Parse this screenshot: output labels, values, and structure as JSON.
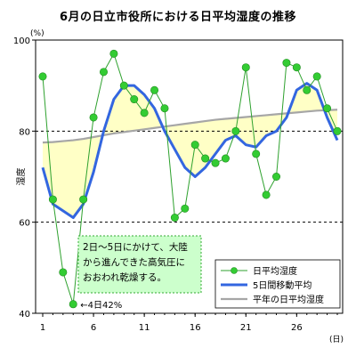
{
  "title": "6月の日立市役所における日平均湿度の推移",
  "colors": {
    "daily_line": "#2ea12e",
    "daily_marker": "#33cc33",
    "moving_avg": "#3366e0",
    "normal": "#a6a6a6",
    "fill": "#ffffc6",
    "note_bg": "#ccffcc",
    "note_border": "#33aa33"
  },
  "note": {
    "lines": [
      "2日～5日にかけて、大陸",
      "から進んできた高気圧に",
      "おおわれ乾燥する。"
    ]
  },
  "callout": "←4日42%",
  "chart_data": {
    "type": "line",
    "title": "6月の日立市役所における日平均湿度の推移",
    "xlabel": "(日)",
    "ylabel": "湿度",
    "yunit": "(%)",
    "xlim": [
      1,
      30
    ],
    "ylim": [
      40,
      100
    ],
    "x": [
      1,
      2,
      3,
      4,
      5,
      6,
      7,
      8,
      9,
      10,
      11,
      12,
      13,
      14,
      15,
      16,
      17,
      18,
      19,
      20,
      21,
      22,
      23,
      24,
      25,
      26,
      27,
      28,
      29,
      30
    ],
    "xticks": [
      1,
      6,
      11,
      16,
      21,
      26
    ],
    "xtick_labels": [
      "1",
      "6",
      "11",
      "16",
      "21",
      "26"
    ],
    "yticks": [
      40,
      60,
      80,
      100
    ],
    "ytick_labels": [
      "40",
      "60",
      "80",
      "100"
    ],
    "gridlines_y": [
      60,
      80
    ],
    "legend_position": "bottom-right",
    "series": [
      {
        "name": "日平均湿度",
        "style": "line+markers",
        "values": [
          92,
          65,
          49,
          42,
          65,
          83,
          93,
          97,
          90,
          87,
          84,
          89,
          85,
          61,
          63,
          77,
          74,
          73,
          74,
          80,
          94,
          75,
          66,
          70,
          95,
          94,
          89,
          92,
          85,
          80
        ]
      },
      {
        "name": "5日間移動平均",
        "style": "thick-line",
        "values": [
          72,
          64,
          62.5,
          61,
          64,
          71,
          80,
          87,
          90,
          90,
          88,
          85,
          80,
          76,
          72,
          70,
          72,
          75,
          78,
          79,
          77,
          76.5,
          79,
          80,
          83,
          89,
          90.5,
          89,
          83,
          78
        ]
      },
      {
        "name": "平年の日平均湿度",
        "style": "line",
        "values": [
          77.5,
          77.6,
          77.8,
          78.0,
          78.3,
          78.7,
          79.1,
          79.5,
          79.8,
          80.1,
          80.4,
          80.7,
          81.0,
          81.3,
          81.6,
          81.9,
          82.2,
          82.5,
          82.7,
          82.9,
          83.1,
          83.3,
          83.5,
          83.7,
          83.9,
          84.1,
          84.3,
          84.5,
          84.6,
          84.7
        ]
      }
    ]
  }
}
